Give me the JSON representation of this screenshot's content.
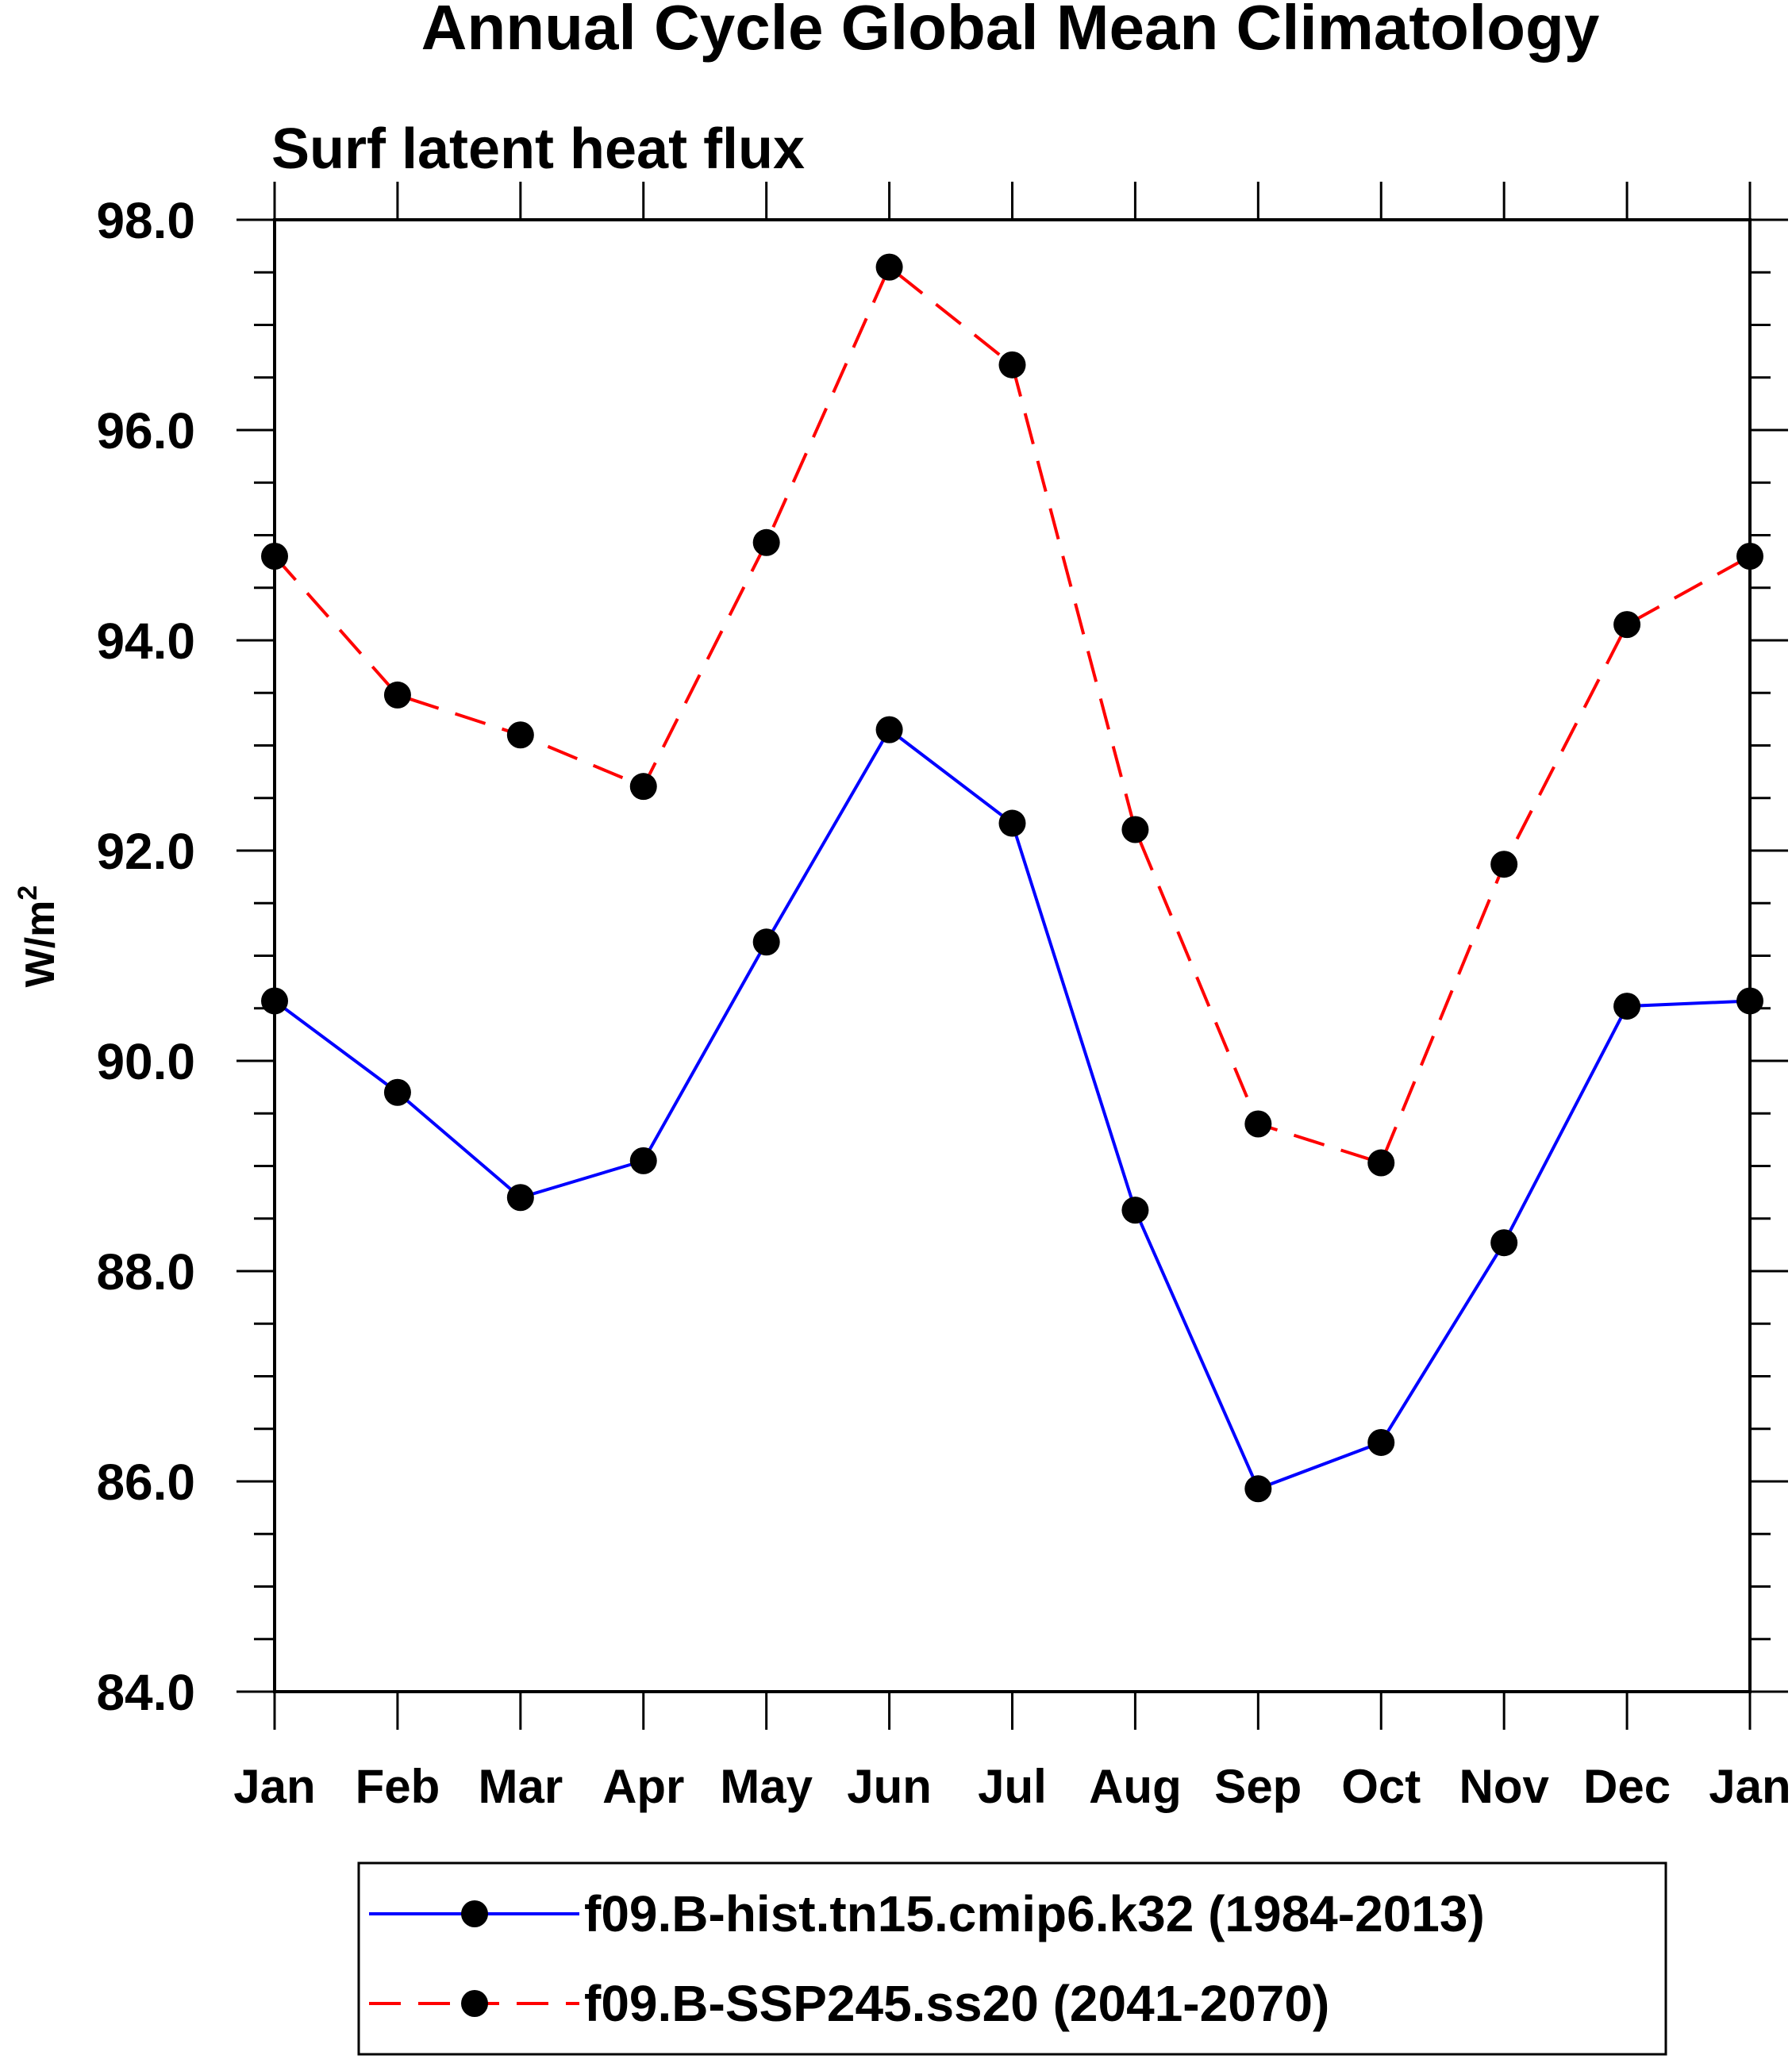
{
  "chart_data": {
    "type": "line",
    "title": "Annual Cycle Global Mean Climatology",
    "subtitle": "Surf latent heat flux",
    "xlabel": "",
    "ylabel": "W/m",
    "ylabel_sup": "2",
    "categories": [
      "Jan",
      "Feb",
      "Mar",
      "Apr",
      "May",
      "Jun",
      "Jul",
      "Aug",
      "Sep",
      "Oct",
      "Nov",
      "Dec",
      "Jan"
    ],
    "ylim": [
      84.0,
      98.0
    ],
    "yticks": [
      {
        "value": 84.0,
        "label": "84.0"
      },
      {
        "value": 86.0,
        "label": "86.0"
      },
      {
        "value": 88.0,
        "label": "88.0"
      },
      {
        "value": 90.0,
        "label": "90.0"
      },
      {
        "value": 92.0,
        "label": "92.0"
      },
      {
        "value": 94.0,
        "label": "94.0"
      },
      {
        "value": 96.0,
        "label": "96.0"
      },
      {
        "value": 98.0,
        "label": "98.0"
      }
    ],
    "y_minor_step": 0.5,
    "grid": false,
    "legend_position": "bottom",
    "series": [
      {
        "name": "f09.B-hist.tn15.cmip6.k32 (1984-2013)",
        "color": "#0000ff",
        "style": "solid",
        "marker": "filled-circle",
        "values": [
          90.57,
          89.7,
          88.7,
          89.05,
          91.13,
          93.15,
          92.26,
          88.58,
          85.93,
          86.37,
          88.27,
          90.52,
          90.57
        ]
      },
      {
        "name": "f09.B-SSP245.ss20 (2041-2070)",
        "color": "#ff0000",
        "style": "dashed",
        "marker": "filled-circle",
        "values": [
          94.8,
          93.48,
          93.1,
          92.61,
          94.93,
          97.55,
          96.62,
          92.2,
          89.4,
          89.03,
          91.87,
          94.15,
          94.8
        ]
      }
    ]
  }
}
